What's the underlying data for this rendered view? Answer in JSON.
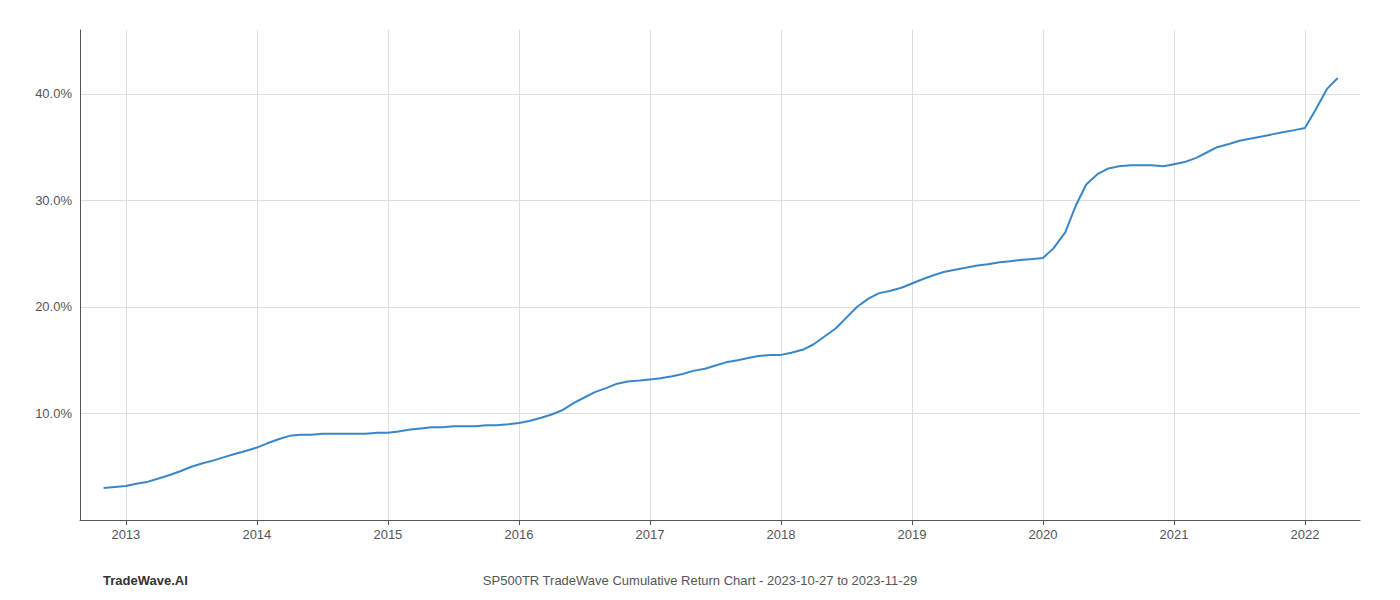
{
  "chart_data": {
    "type": "line",
    "title": "SP500TR TradeWave Cumulative Return Chart - 2023-10-27 to 2023-11-29",
    "annotations": [
      "TradeWave.AI"
    ],
    "x": [
      2012.83,
      2013.0,
      2013.08,
      2013.17,
      2013.25,
      2013.33,
      2013.42,
      2013.5,
      2013.58,
      2013.67,
      2013.75,
      2013.83,
      2013.92,
      2014.0,
      2014.08,
      2014.17,
      2014.25,
      2014.33,
      2014.42,
      2014.5,
      2014.58,
      2014.67,
      2014.75,
      2014.83,
      2014.92,
      2015.0,
      2015.08,
      2015.17,
      2015.25,
      2015.33,
      2015.42,
      2015.5,
      2015.58,
      2015.67,
      2015.75,
      2015.83,
      2015.92,
      2016.0,
      2016.08,
      2016.17,
      2016.25,
      2016.33,
      2016.42,
      2016.5,
      2016.58,
      2016.67,
      2016.75,
      2016.83,
      2016.92,
      2017.0,
      2017.08,
      2017.17,
      2017.25,
      2017.33,
      2017.42,
      2017.5,
      2017.58,
      2017.67,
      2017.75,
      2017.83,
      2017.92,
      2018.0,
      2018.08,
      2018.17,
      2018.25,
      2018.33,
      2018.42,
      2018.5,
      2018.58,
      2018.67,
      2018.75,
      2018.83,
      2018.92,
      2019.0,
      2019.08,
      2019.17,
      2019.25,
      2019.33,
      2019.42,
      2019.5,
      2019.58,
      2019.67,
      2019.75,
      2019.83,
      2019.92,
      2020.0,
      2020.08,
      2020.17,
      2020.25,
      2020.33,
      2020.42,
      2020.5,
      2020.58,
      2020.67,
      2020.75,
      2020.83,
      2020.92,
      2021.0,
      2021.08,
      2021.17,
      2021.25,
      2021.33,
      2021.42,
      2021.5,
      2021.58,
      2021.67,
      2021.75,
      2021.83,
      2021.92,
      2022.0,
      2022.08,
      2022.17,
      2022.25
    ],
    "values": [
      3.0,
      3.2,
      3.4,
      3.6,
      3.9,
      4.2,
      4.6,
      5.0,
      5.3,
      5.6,
      5.9,
      6.2,
      6.5,
      6.8,
      7.2,
      7.6,
      7.9,
      8.0,
      8.0,
      8.1,
      8.1,
      8.1,
      8.1,
      8.1,
      8.2,
      8.2,
      8.3,
      8.5,
      8.6,
      8.7,
      8.7,
      8.8,
      8.8,
      8.8,
      8.9,
      8.9,
      9.0,
      9.1,
      9.3,
      9.6,
      9.9,
      10.3,
      11.0,
      11.5,
      12.0,
      12.4,
      12.8,
      13.0,
      13.1,
      13.2,
      13.3,
      13.5,
      13.7,
      14.0,
      14.2,
      14.5,
      14.8,
      15.0,
      15.2,
      15.4,
      15.5,
      15.5,
      15.7,
      16.0,
      16.5,
      17.2,
      18.0,
      19.0,
      20.0,
      20.8,
      21.3,
      21.5,
      21.8,
      22.2,
      22.6,
      23.0,
      23.3,
      23.5,
      23.7,
      23.9,
      24.0,
      24.2,
      24.3,
      24.4,
      24.5,
      24.6,
      25.5,
      27.0,
      29.5,
      31.5,
      32.5,
      33.0,
      33.2,
      33.3,
      33.3,
      33.3,
      33.2,
      33.4,
      33.6,
      34.0,
      34.5,
      35.0,
      35.3,
      35.6,
      35.8,
      36.0,
      36.2,
      36.4,
      36.6,
      36.8,
      38.5,
      40.5,
      41.5
    ],
    "color": "#3a87c8",
    "xlim": [
      2012.65,
      2022.42
    ],
    "xticks": [
      2013,
      2014,
      2015,
      2016,
      2017,
      2018,
      2019,
      2020,
      2021,
      2022
    ],
    "ylim": [
      0,
      46
    ],
    "yticks": [
      {
        "value": 10.0,
        "label": "10.0%"
      },
      {
        "value": 20.0,
        "label": "20.0%"
      },
      {
        "value": 30.0,
        "label": "30.0%"
      },
      {
        "value": 40.0,
        "label": "40.0%"
      }
    ],
    "grid": true
  }
}
